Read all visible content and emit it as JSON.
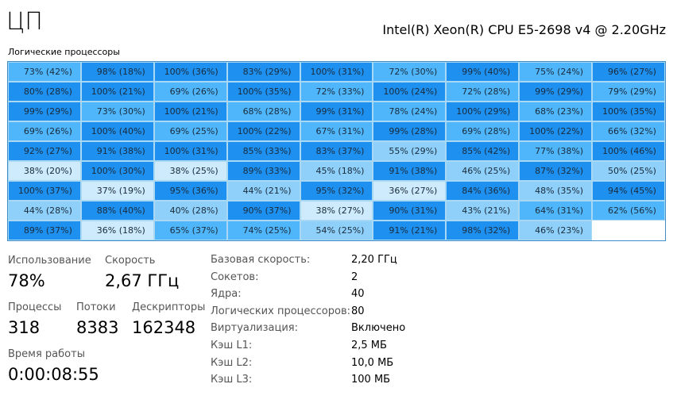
{
  "title": "ЦП",
  "cpu_name": "Intel(R) Xeon(R) CPU E5-2698 v4 @ 2.20GHz",
  "grid_label": "Логические процессоры",
  "colors": {
    "high": "#1e90f0",
    "mid": "#4fb6fb",
    "low": "#8ed0fa",
    "vlow": "#cdebfc",
    "border": "#3c8dc8"
  },
  "chart_data": {
    "type": "heatmap",
    "title": "Логические процессоры",
    "columns": 9,
    "cells": [
      [
        "73% (42%)",
        "98% (18%)",
        "100% (36%)",
        "83% (29%)",
        "100% (31%)",
        "72% (30%)",
        "99% (40%)",
        "75% (24%)",
        "96% (27%)"
      ],
      [
        "80% (28%)",
        "100% (21%)",
        "69% (26%)",
        "100% (35%)",
        "72% (33%)",
        "100% (24%)",
        "72% (28%)",
        "99% (29%)",
        "79% (29%)"
      ],
      [
        "99% (29%)",
        "73% (30%)",
        "100% (21%)",
        "68% (28%)",
        "99% (31%)",
        "78% (24%)",
        "100% (29%)",
        "68% (23%)",
        "100% (35%)"
      ],
      [
        "69% (26%)",
        "100% (40%)",
        "69% (25%)",
        "100% (22%)",
        "67% (31%)",
        "99% (28%)",
        "69% (28%)",
        "100% (22%)",
        "66% (32%)"
      ],
      [
        "92% (27%)",
        "91% (38%)",
        "100% (31%)",
        "85% (33%)",
        "83% (37%)",
        "55% (29%)",
        "85% (42%)",
        "77% (38%)",
        "100% (46%)"
      ],
      [
        "38% (20%)",
        "100% (30%)",
        "38% (25%)",
        "89% (33%)",
        "45% (18%)",
        "91% (38%)",
        "46% (25%)",
        "87% (32%)",
        "50% (25%)"
      ],
      [
        "100% (37%)",
        "37% (19%)",
        "95% (36%)",
        "44% (21%)",
        "95% (32%)",
        "36% (27%)",
        "84% (36%)",
        "48% (35%)",
        "94% (45%)"
      ],
      [
        "44% (28%)",
        "88% (40%)",
        "40% (28%)",
        "90% (37%)",
        "38% (27%)",
        "90% (31%)",
        "43% (21%)",
        "64% (31%)",
        "62% (56%)"
      ],
      [
        "89% (37%)",
        "36% (18%)",
        "65% (37%)",
        "74% (25%)",
        "54% (25%)",
        "91% (21%)",
        "98% (32%)",
        "46% (23%)"
      ]
    ]
  },
  "stats": {
    "usage_label": "Использование",
    "usage": "78%",
    "speed_label": "Скорость",
    "speed": "2,67 ГГц",
    "processes_label": "Процессы",
    "processes": "318",
    "threads_label": "Потоки",
    "threads": "8383",
    "handles_label": "Дескрипторы",
    "handles": "162348",
    "uptime_label": "Время работы",
    "uptime": "0:00:08:55"
  },
  "specs": [
    {
      "label": "Базовая скорость:",
      "value": "2,20 ГГц"
    },
    {
      "label": "Сокетов:",
      "value": "2"
    },
    {
      "label": "Ядра:",
      "value": "40"
    },
    {
      "label": "Логических процессоров:",
      "value": "80"
    },
    {
      "label": "Виртуализация:",
      "value": "Включено"
    },
    {
      "label": "Кэш L1:",
      "value": "2,5 МБ"
    },
    {
      "label": "Кэш L2:",
      "value": "10,0 МБ"
    },
    {
      "label": "Кэш L3:",
      "value": "100 МБ"
    }
  ]
}
